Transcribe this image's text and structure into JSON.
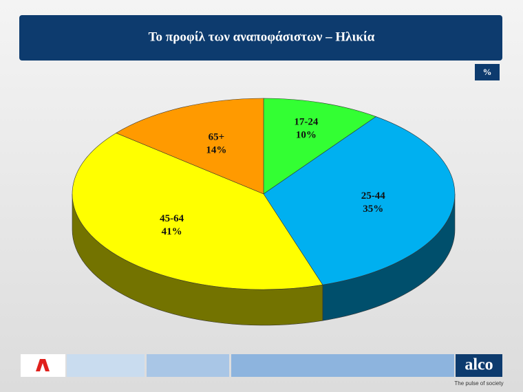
{
  "chart_data": {
    "type": "pie",
    "title": "Το προφίλ των αναποφάσιστων – Ηλικία",
    "unit_label": "%",
    "categories": [
      "17-24",
      "25-44",
      "45-64",
      "65+"
    ],
    "values": [
      10,
      35,
      41,
      14
    ],
    "value_labels": [
      "10%",
      "35%",
      "41%",
      "14%"
    ],
    "colors": [
      "#33ff33",
      "#00b0f0",
      "#ffff00",
      "#ff9a00"
    ]
  },
  "footer": {
    "brand": "alco",
    "tagline": "The pulse of society"
  }
}
